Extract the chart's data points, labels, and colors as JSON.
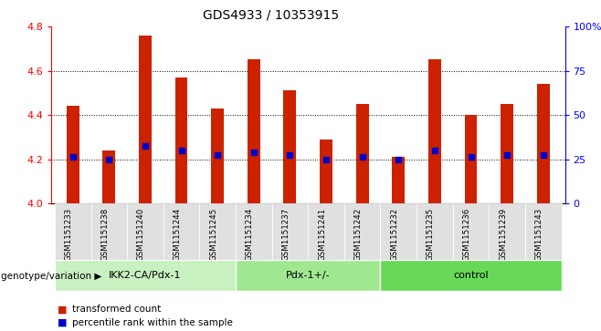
{
  "title": "GDS4933 / 10353915",
  "samples": [
    "GSM1151233",
    "GSM1151238",
    "GSM1151240",
    "GSM1151244",
    "GSM1151245",
    "GSM1151234",
    "GSM1151237",
    "GSM1151241",
    "GSM1151242",
    "GSM1151232",
    "GSM1151235",
    "GSM1151236",
    "GSM1151239",
    "GSM1151243"
  ],
  "bar_heights": [
    4.44,
    4.24,
    4.76,
    4.57,
    4.43,
    4.65,
    4.51,
    4.29,
    4.45,
    4.21,
    4.65,
    4.4,
    4.45,
    4.54
  ],
  "blue_dots": [
    4.21,
    4.2,
    4.26,
    4.24,
    4.22,
    4.23,
    4.22,
    4.2,
    4.21,
    4.2,
    4.24,
    4.21,
    4.22,
    4.22
  ],
  "groups": [
    {
      "label": "IKK2-CA/Pdx-1",
      "start": 0,
      "end": 5,
      "color": "#c8f0c0"
    },
    {
      "label": "Pdx-1+/-",
      "start": 5,
      "end": 9,
      "color": "#a0e890"
    },
    {
      "label": "control",
      "start": 9,
      "end": 14,
      "color": "#68d858"
    }
  ],
  "ylim": [
    4.0,
    4.8
  ],
  "right_ylim": [
    0,
    100
  ],
  "right_yticks": [
    0,
    25,
    50,
    75,
    100
  ],
  "right_yticklabels": [
    "0",
    "25",
    "50",
    "75",
    "100%"
  ],
  "left_yticks": [
    4.0,
    4.2,
    4.4,
    4.6,
    4.8
  ],
  "bar_color": "#cc2200",
  "dot_color": "#0000cc",
  "legend_items": [
    {
      "color": "#cc2200",
      "label": "transformed count"
    },
    {
      "color": "#0000cc",
      "label": "percentile rank within the sample"
    }
  ],
  "genotype_label": "genotype/variation"
}
